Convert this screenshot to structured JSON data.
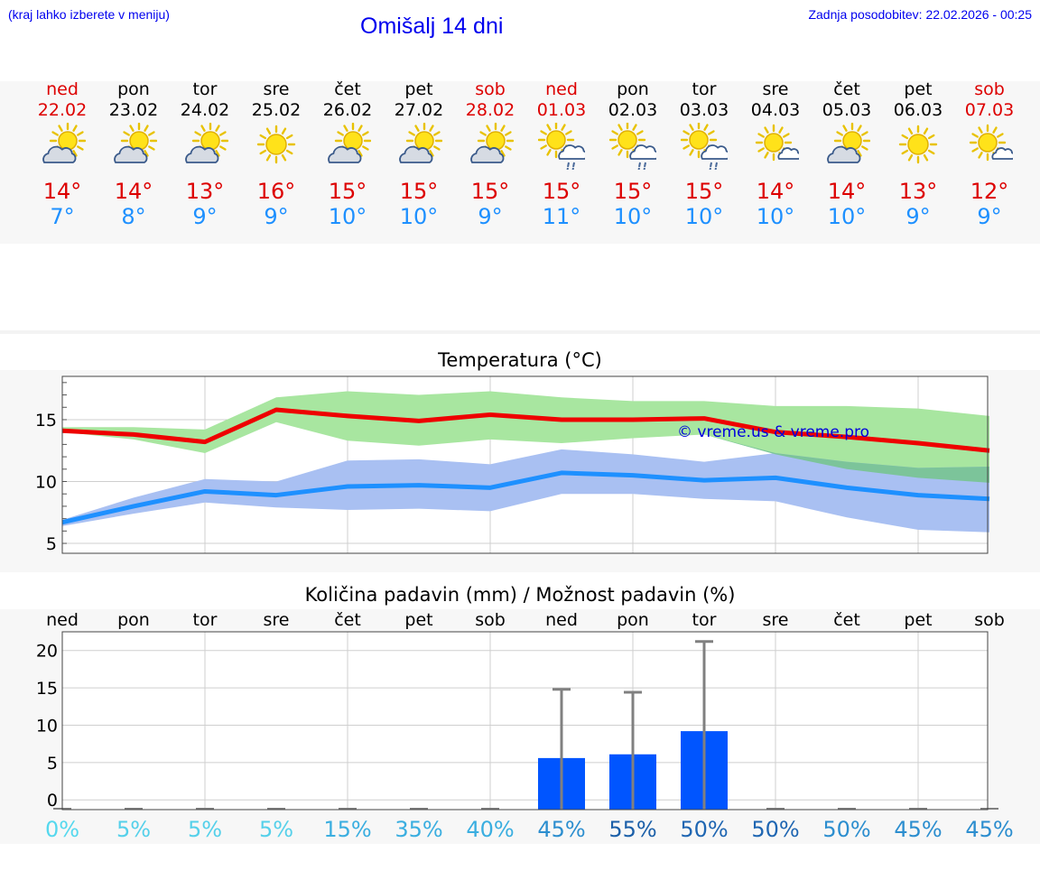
{
  "header": {
    "note": "(kraj lahko izberete v meniju)",
    "title": "Omišalj 14 dni",
    "updated": "Zadnja posodobitev: 22.02.2026 - 00:25"
  },
  "days": [
    {
      "name": "ned",
      "date": "22.02",
      "weekend": true,
      "icon": "partly-cloudy-icon",
      "tmax": "14°",
      "tmin": "7°"
    },
    {
      "name": "pon",
      "date": "23.02",
      "weekend": false,
      "icon": "partly-cloudy-icon",
      "tmax": "14°",
      "tmin": "8°"
    },
    {
      "name": "tor",
      "date": "24.02",
      "weekend": false,
      "icon": "partly-cloudy-icon",
      "tmax": "13°",
      "tmin": "9°"
    },
    {
      "name": "sre",
      "date": "25.02",
      "weekend": false,
      "icon": "sunny-icon",
      "tmax": "16°",
      "tmin": "9°"
    },
    {
      "name": "čet",
      "date": "26.02",
      "weekend": false,
      "icon": "partly-cloudy-icon",
      "tmax": "15°",
      "tmin": "10°"
    },
    {
      "name": "pet",
      "date": "27.02",
      "weekend": false,
      "icon": "partly-cloudy-icon",
      "tmax": "15°",
      "tmin": "10°"
    },
    {
      "name": "sob",
      "date": "28.02",
      "weekend": true,
      "icon": "partly-cloudy-icon",
      "tmax": "15°",
      "tmin": "9°"
    },
    {
      "name": "ned",
      "date": "01.03",
      "weekend": true,
      "icon": "sun-cloud-rain-icon",
      "tmax": "15°",
      "tmin": "11°"
    },
    {
      "name": "pon",
      "date": "02.03",
      "weekend": false,
      "icon": "sun-cloud-rain-icon",
      "tmax": "15°",
      "tmin": "10°"
    },
    {
      "name": "tor",
      "date": "03.03",
      "weekend": false,
      "icon": "sun-cloud-rain-icon",
      "tmax": "15°",
      "tmin": "10°"
    },
    {
      "name": "sre",
      "date": "04.03",
      "weekend": false,
      "icon": "sun-small-cloud-icon",
      "tmax": "14°",
      "tmin": "10°"
    },
    {
      "name": "čet",
      "date": "05.03",
      "weekend": false,
      "icon": "partly-cloudy-icon",
      "tmax": "14°",
      "tmin": "10°"
    },
    {
      "name": "pet",
      "date": "06.03",
      "weekend": false,
      "icon": "sunny-icon",
      "tmax": "13°",
      "tmin": "9°"
    },
    {
      "name": "sob",
      "date": "07.03",
      "weekend": true,
      "icon": "sun-small-cloud-icon",
      "tmax": "12°",
      "tmin": "9°"
    }
  ],
  "colors": {
    "max": "#ee0000",
    "min": "#1e90ff",
    "max_band": "#a8e6a0",
    "min_band": "#a9c0f2",
    "overlap": "#7cc49a",
    "bar": "#0055ff",
    "whisker": "#808080"
  },
  "chart_data": [
    {
      "type": "line",
      "title": "Temperatura (°C)",
      "watermark": "© vreme.us & vreme.pro",
      "x": [
        0,
        1,
        2,
        3,
        4,
        5,
        6,
        7,
        8,
        9,
        10,
        11,
        12,
        13
      ],
      "yticks": [
        5,
        10,
        15
      ],
      "ylim": [
        4.2,
        18.5
      ],
      "series": [
        {
          "name": "max",
          "values": [
            14.1,
            13.8,
            13.2,
            15.8,
            15.3,
            14.9,
            15.4,
            15.0,
            15.0,
            15.1,
            14.0,
            13.6,
            13.1,
            12.5
          ]
        },
        {
          "name": "min",
          "values": [
            6.7,
            8.0,
            9.2,
            8.9,
            9.6,
            9.7,
            9.5,
            10.7,
            10.5,
            10.1,
            10.3,
            9.5,
            8.9,
            8.6
          ]
        },
        {
          "name": "max_range_low",
          "values": [
            14.0,
            13.4,
            12.3,
            14.8,
            13.3,
            12.9,
            13.4,
            13.1,
            13.5,
            13.8,
            12.2,
            11.0,
            10.3,
            9.9
          ]
        },
        {
          "name": "max_range_high",
          "values": [
            14.4,
            14.4,
            14.2,
            16.8,
            17.3,
            17.0,
            17.3,
            16.8,
            16.5,
            16.5,
            16.1,
            16.1,
            15.9,
            15.3
          ]
        },
        {
          "name": "min_range_low",
          "values": [
            6.4,
            7.4,
            8.3,
            7.9,
            7.7,
            7.8,
            7.6,
            9.0,
            9.0,
            8.6,
            8.4,
            7.1,
            6.1,
            5.9
          ]
        },
        {
          "name": "min_range_high",
          "values": [
            6.9,
            8.7,
            10.2,
            10.0,
            11.7,
            11.8,
            11.4,
            12.6,
            12.2,
            11.6,
            12.3,
            11.6,
            11.1,
            11.2
          ]
        }
      ]
    },
    {
      "type": "bar",
      "title": "Količina padavin (mm) / Možnost padavin (%)",
      "categories": [
        "ned",
        "pon",
        "tor",
        "sre",
        "čet",
        "pet",
        "sob",
        "ned",
        "pon",
        "tor",
        "sre",
        "čet",
        "pet",
        "sob"
      ],
      "yticks": [
        0,
        5,
        10,
        15,
        20
      ],
      "ylim": [
        -1.3,
        22.5
      ],
      "values": [
        0,
        0,
        0,
        0,
        0,
        0,
        0,
        5.6,
        6.1,
        9.2,
        0,
        0,
        0,
        0
      ],
      "error_high": [
        0,
        0,
        0,
        0,
        0,
        0,
        0,
        14.8,
        14.4,
        21.2,
        0,
        0,
        0,
        0
      ],
      "probability": [
        "0%",
        "5%",
        "5%",
        "5%",
        "15%",
        "35%",
        "40%",
        "45%",
        "55%",
        "50%",
        "50%",
        "50%",
        "45%",
        "45%"
      ],
      "probability_colors": [
        "#55d8ee",
        "#55d0ea",
        "#55d0ea",
        "#55d0ea",
        "#3aaee0",
        "#3aaee0",
        "#3aaee0",
        "#2c8ecf",
        "#1b5fa8",
        "#1f66b2",
        "#1f66b2",
        "#2c8ecf",
        "#2c8ecf",
        "#2c8ecf"
      ]
    }
  ]
}
